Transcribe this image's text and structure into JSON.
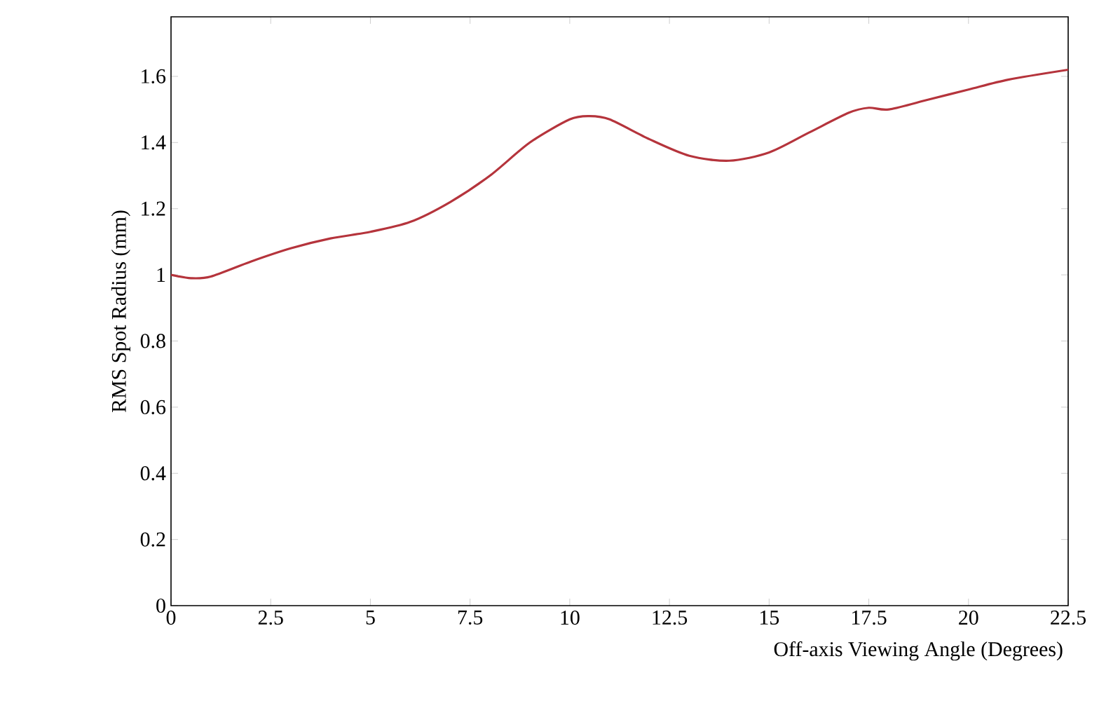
{
  "chart_data": {
    "type": "line",
    "xlabel": "Off-axis Viewing Angle (Degrees)",
    "ylabel": "RMS Spot Radius (mm)",
    "xlim": [
      0,
      22.5
    ],
    "ylim": [
      0,
      1.78
    ],
    "xticks": [
      0,
      2.5,
      5,
      7.5,
      10,
      12.5,
      15,
      17.5,
      20,
      22.5
    ],
    "yticks": [
      0,
      0.2,
      0.4,
      0.6,
      0.8,
      1,
      1.2,
      1.4,
      1.6
    ],
    "grid": false,
    "marker": "none",
    "line_style": "solid",
    "series": [
      {
        "color": "#b5343c",
        "x": [
          0,
          0.5,
          1,
          2,
          3,
          4,
          5,
          6,
          7,
          8,
          9,
          10,
          10.5,
          11,
          12,
          13,
          14,
          15,
          16,
          17,
          17.5,
          18,
          19,
          20,
          21,
          22.5
        ],
        "values": [
          1.0,
          0.99,
          0.995,
          1.04,
          1.08,
          1.11,
          1.13,
          1.16,
          1.22,
          1.3,
          1.4,
          1.47,
          1.48,
          1.47,
          1.41,
          1.36,
          1.345,
          1.37,
          1.43,
          1.49,
          1.505,
          1.5,
          1.53,
          1.56,
          1.59,
          1.62
        ]
      }
    ]
  }
}
